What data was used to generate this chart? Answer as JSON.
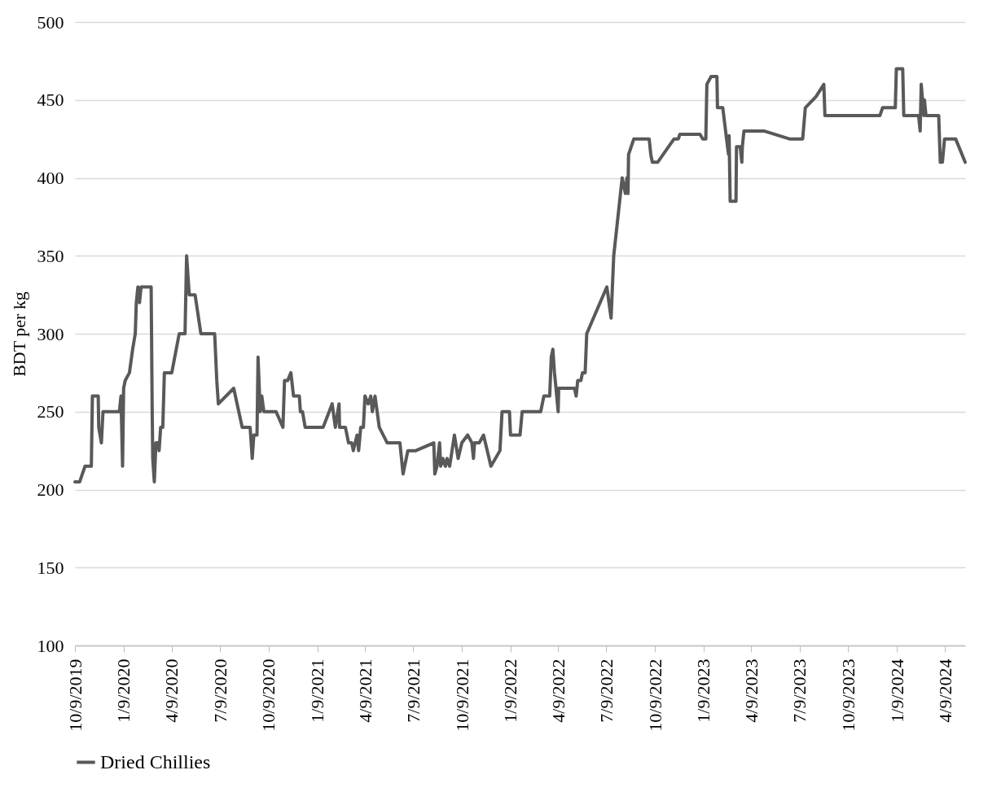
{
  "chart_data": {
    "type": "line",
    "ylabel": "BDT per kg",
    "xlim": [
      "2019-10-09",
      "2024-05-17"
    ],
    "ylim": [
      100,
      500
    ],
    "yticks": [
      100,
      150,
      200,
      250,
      300,
      350,
      400,
      450,
      500
    ],
    "xticks": [
      {
        "value": "2019-10-09",
        "label": "10/9/2019"
      },
      {
        "value": "2020-01-09",
        "label": "1/9/2020"
      },
      {
        "value": "2020-04-09",
        "label": "4/9/2020"
      },
      {
        "value": "2020-07-09",
        "label": "7/9/2020"
      },
      {
        "value": "2020-10-09",
        "label": "10/9/2020"
      },
      {
        "value": "2021-01-09",
        "label": "1/9/2021"
      },
      {
        "value": "2021-04-09",
        "label": "4/9/2021"
      },
      {
        "value": "2021-07-09",
        "label": "7/9/2021"
      },
      {
        "value": "2021-10-09",
        "label": "10/9/2021"
      },
      {
        "value": "2022-01-09",
        "label": "1/9/2022"
      },
      {
        "value": "2022-04-09",
        "label": "4/9/2022"
      },
      {
        "value": "2022-07-09",
        "label": "7/9/2022"
      },
      {
        "value": "2022-10-09",
        "label": "10/9/2022"
      },
      {
        "value": "2023-01-09",
        "label": "1/9/2023"
      },
      {
        "value": "2023-04-09",
        "label": "4/9/2023"
      },
      {
        "value": "2023-07-09",
        "label": "7/9/2023"
      },
      {
        "value": "2023-10-09",
        "label": "10/9/2023"
      },
      {
        "value": "2024-01-09",
        "label": "1/9/2024"
      },
      {
        "value": "2024-04-09",
        "label": "4/9/2024"
      }
    ],
    "grid": "y",
    "legend": "bottom",
    "marker": "none",
    "line_style": "solid",
    "x": [
      "2019-10-09",
      "2019-10-18",
      "2019-10-28",
      "2019-11-09",
      "2019-11-11",
      "2019-11-22",
      "2019-11-23",
      "2019-11-28",
      "2019-12-01",
      "2020-01-01",
      "2020-01-04",
      "2020-01-07",
      "2020-01-09",
      "2020-01-12",
      "2020-01-20",
      "2020-01-26",
      "2020-01-31",
      "2020-02-02",
      "2020-02-05",
      "2020-02-08",
      "2020-02-11",
      "2020-03-01",
      "2020-03-03",
      "2020-03-04",
      "2020-03-07",
      "2020-03-10",
      "2020-03-15",
      "2020-03-16",
      "2020-03-19",
      "2020-03-23",
      "2020-03-26",
      "2020-04-09",
      "2020-04-23",
      "2020-05-04",
      "2020-05-07",
      "2020-05-12",
      "2020-05-23",
      "2020-06-03",
      "2020-06-29",
      "2020-07-01",
      "2020-07-03",
      "2020-07-06",
      "2020-08-04",
      "2020-08-20",
      "2020-09-04",
      "2020-09-08",
      "2020-09-11",
      "2020-09-17",
      "2020-09-19",
      "2020-09-23",
      "2020-09-26",
      "2020-09-30",
      "2020-10-23",
      "2020-11-05",
      "2020-11-08",
      "2020-11-14",
      "2020-11-20",
      "2020-11-25",
      "2020-12-06",
      "2020-12-08",
      "2020-12-12",
      "2020-12-17",
      "2021-01-20",
      "2021-02-06",
      "2021-02-12",
      "2021-02-19",
      "2021-02-20",
      "2021-03-03",
      "2021-03-09",
      "2021-03-15",
      "2021-03-18",
      "2021-03-25",
      "2021-03-28",
      "2021-04-01",
      "2021-04-06",
      "2021-04-09",
      "2021-04-15",
      "2021-04-20",
      "2021-04-23",
      "2021-04-28",
      "2021-05-06",
      "2021-05-21",
      "2021-06-14",
      "2021-06-20",
      "2021-06-29",
      "2021-07-14",
      "2021-08-17",
      "2021-08-19",
      "2021-08-23",
      "2021-08-28",
      "2021-08-30",
      "2021-09-03",
      "2021-09-08",
      "2021-09-11",
      "2021-09-16",
      "2021-09-25",
      "2021-10-02",
      "2021-10-09",
      "2021-10-20",
      "2021-10-28",
      "2021-10-31",
      "2021-11-02",
      "2021-11-11",
      "2021-11-19",
      "2021-12-03",
      "2021-12-20",
      "2021-12-24",
      "2022-01-07",
      "2022-01-09",
      "2022-01-27",
      "2022-01-31",
      "2022-03-07",
      "2022-03-13",
      "2022-03-24",
      "2022-03-27",
      "2022-03-30",
      "2022-04-02",
      "2022-04-05",
      "2022-04-09",
      "2022-04-10",
      "2022-05-10",
      "2022-05-13",
      "2022-05-16",
      "2022-05-22",
      "2022-05-25",
      "2022-05-30",
      "2022-06-02",
      "2022-07-10",
      "2022-07-16",
      "2022-07-18",
      "2022-07-23",
      "2022-08-08",
      "2022-08-14",
      "2022-08-17",
      "2022-08-19",
      "2022-08-20",
      "2022-08-30",
      "2022-09-28",
      "2022-10-01",
      "2022-10-04",
      "2022-10-14",
      "2022-11-14",
      "2022-11-22",
      "2022-11-25",
      "2023-01-02",
      "2023-01-07",
      "2023-01-13",
      "2023-01-15",
      "2023-01-23",
      "2023-02-03",
      "2023-02-04",
      "2023-02-14",
      "2023-02-23",
      "2023-02-25",
      "2023-02-26",
      "2023-02-28",
      "2023-03-11",
      "2023-03-12",
      "2023-03-19",
      "2023-03-22",
      "2023-03-23",
      "2023-03-26",
      "2023-05-04",
      "2023-06-20",
      "2023-07-15",
      "2023-07-20",
      "2023-08-09",
      "2023-08-24",
      "2023-08-26",
      "2023-12-08",
      "2023-12-13",
      "2024-01-06",
      "2024-01-08",
      "2024-01-20",
      "2024-01-22",
      "2024-02-19",
      "2024-02-22",
      "2024-02-24",
      "2024-02-29",
      "2024-03-01",
      "2024-03-04",
      "2024-03-28",
      "2024-03-31",
      "2024-04-04",
      "2024-04-08",
      "2024-04-29",
      "2024-05-17"
    ],
    "series": [
      {
        "name": "Dried Chillies",
        "color": "#595959",
        "values": [
          205,
          205,
          215,
          215,
          260,
          260,
          240,
          230,
          250,
          250,
          260,
          215,
          265,
          270,
          275,
          290,
          300,
          320,
          330,
          320,
          330,
          330,
          250,
          220,
          205,
          230,
          230,
          225,
          240,
          240,
          275,
          275,
          300,
          300,
          350,
          325,
          325,
          300,
          300,
          285,
          270,
          255,
          265,
          240,
          240,
          220,
          235,
          235,
          285,
          250,
          260,
          250,
          250,
          240,
          270,
          270,
          275,
          260,
          260,
          250,
          250,
          240,
          240,
          255,
          240,
          255,
          240,
          240,
          230,
          230,
          225,
          235,
          225,
          240,
          240,
          260,
          255,
          260,
          250,
          260,
          240,
          230,
          230,
          210,
          225,
          225,
          230,
          210,
          215,
          230,
          215,
          220,
          215,
          220,
          215,
          235,
          220,
          230,
          235,
          230,
          220,
          230,
          230,
          235,
          215,
          225,
          250,
          250,
          235,
          235,
          250,
          250,
          260,
          260,
          285,
          290,
          275,
          265,
          250,
          265,
          265,
          260,
          270,
          270,
          275,
          275,
          300,
          330,
          315,
          310,
          350,
          400,
          390,
          400,
          390,
          415,
          425,
          425,
          415,
          410,
          410,
          425,
          425,
          428,
          428,
          425,
          425,
          460,
          465,
          465,
          445,
          445,
          420,
          415,
          427,
          385,
          385,
          420,
          420,
          410,
          420,
          430,
          430,
          425,
          425,
          445,
          452,
          460,
          440,
          440,
          445,
          445,
          470,
          470,
          440,
          440,
          430,
          460,
          440,
          450,
          440,
          440,
          410,
          410,
          425,
          425,
          410
        ]
      }
    ]
  }
}
